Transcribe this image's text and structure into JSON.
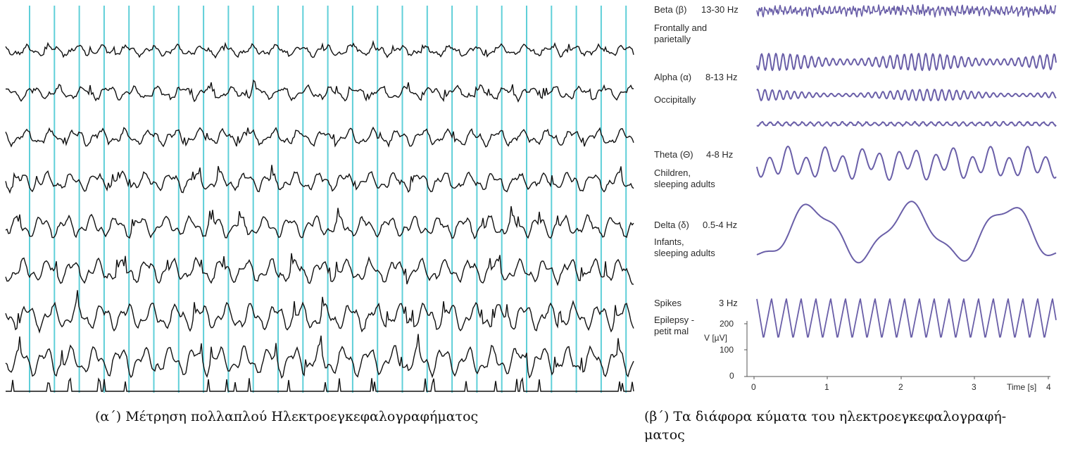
{
  "left_panel": {
    "caption": "(α΄) Μέτρηση πολλαπλού Ηλεκτροεγκεφαλογραφήματος",
    "channels": 8,
    "colors": {
      "trace": "#111111",
      "grid": "#5fcfd8"
    }
  },
  "right_panel": {
    "caption_line1": "(β΄) Τα διάφορα κύματα του ηλεκτροεγκεφαλογραφή-",
    "caption_line2": "ματος",
    "trace_color": "#6a5fa8",
    "waves": [
      {
        "name": "Beta (β)",
        "freq": "13-30 Hz",
        "desc1": "Frontally and",
        "desc2": "parietally"
      },
      {
        "name": "Alpha (α)",
        "freq": "8-13 Hz",
        "desc1": "Occipitally",
        "desc2": ""
      },
      {
        "name": "Theta (Θ)",
        "freq": "4-8 Hz",
        "desc1": "Children,",
        "desc2": "sleeping adults"
      },
      {
        "name": "Delta (δ)",
        "freq": "0.5-4 Hz",
        "desc1": "Infants,",
        "desc2": "sleeping adults"
      },
      {
        "name": "Spikes",
        "freq": "3 Hz",
        "desc1": "Epilepsy -",
        "desc2": "petit mal"
      }
    ],
    "axes": {
      "y_label": "V [µV]",
      "y_ticks": [
        "200",
        "100",
        "0"
      ],
      "x_label": "Time [s]",
      "x_ticks": [
        "0",
        "1",
        "2",
        "3",
        "4"
      ]
    }
  }
}
